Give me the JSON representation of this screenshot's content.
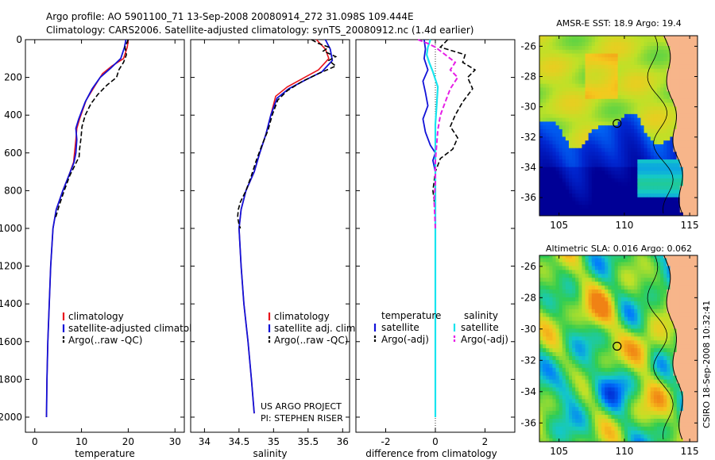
{
  "title_line1": "Argo profile: AO 5901100_71 13-Sep-2008 20080914_272 31.098S 109.444E",
  "title_line2": "Climatology: CARS2006. Satellite-adjusted climatology: synTS_20080912.nc (1.4d earlier)",
  "credit_lines": [
    "US ARGO PROJECT",
    "PI: STEPHEN RISER"
  ],
  "side_stamp": "CSIRO 18-Sep-2008 10:32:41",
  "colors": {
    "clim": "#e8141c",
    "sat": "#1212d8",
    "argo": "#000000",
    "cyan": "#19e4ee",
    "magenta": "#e61ee6"
  },
  "chart_data": [
    {
      "type": "line",
      "xlabel": "temperature",
      "ylabel": "",
      "xlim": [
        -2,
        32
      ],
      "ylim": [
        2080,
        0
      ],
      "y_reversed": true,
      "xticks": [
        0,
        10,
        20,
        30
      ],
      "yticks": [
        0,
        200,
        400,
        600,
        800,
        1000,
        1200,
        1400,
        1600,
        1800,
        2000
      ],
      "legend": [
        {
          "label": "climatology",
          "style": "red-solid"
        },
        {
          "label": "satellite-adjusted climatology",
          "style": "blue-solid"
        },
        {
          "label": "Argo(..raw -QC)",
          "style": "black-dashed"
        }
      ],
      "series": [
        {
          "name": "climatology",
          "style": "red-solid",
          "points": [
            [
              20,
              0
            ],
            [
              19.8,
              40
            ],
            [
              19,
              100
            ],
            [
              16.5,
              140
            ],
            [
              14.5,
              180
            ],
            [
              13,
              240
            ],
            [
              11,
              320
            ],
            [
              9.6,
              420
            ],
            [
              9,
              470
            ],
            [
              8.8,
              530
            ],
            [
              8.5,
              600
            ],
            [
              8.3,
              650
            ],
            [
              7.3,
              720
            ],
            [
              6,
              800
            ],
            [
              4.6,
              900
            ],
            [
              3.9,
              1000
            ],
            [
              3.4,
              1200
            ],
            [
              3.1,
              1400
            ],
            [
              2.8,
              1600
            ],
            [
              2.6,
              1800
            ],
            [
              2.5,
              2000
            ]
          ]
        },
        {
          "name": "satellite-adjusted climatology",
          "style": "blue-solid",
          "points": [
            [
              19.5,
              0
            ],
            [
              19.2,
              40
            ],
            [
              18.4,
              100
            ],
            [
              16.3,
              150
            ],
            [
              14,
              200
            ],
            [
              12.3,
              260
            ],
            [
              10.8,
              330
            ],
            [
              9.4,
              420
            ],
            [
              8.8,
              470
            ],
            [
              9,
              530
            ],
            [
              8.8,
              600
            ],
            [
              8.4,
              650
            ],
            [
              7.3,
              720
            ],
            [
              6,
              800
            ],
            [
              4.6,
              900
            ],
            [
              3.9,
              1000
            ],
            [
              3.4,
              1200
            ],
            [
              3.1,
              1400
            ],
            [
              2.8,
              1600
            ],
            [
              2.6,
              1800
            ],
            [
              2.5,
              2000
            ]
          ]
        },
        {
          "name": "Argo(..raw -QC)",
          "style": "black-dashed",
          "points": [
            [
              20,
              0
            ],
            [
              19.3,
              40
            ],
            [
              19.6,
              80
            ],
            [
              19,
              120
            ],
            [
              18,
              160
            ],
            [
              17.5,
              200
            ],
            [
              15.5,
              240
            ],
            [
              13.5,
              290
            ],
            [
              12,
              340
            ],
            [
              10.8,
              400
            ],
            [
              10.1,
              460
            ],
            [
              9.9,
              520
            ],
            [
              9.6,
              580
            ],
            [
              9.5,
              620
            ],
            [
              8.7,
              660
            ],
            [
              7.5,
              720
            ],
            [
              6.3,
              800
            ],
            [
              5.2,
              880
            ],
            [
              4.5,
              940
            ]
          ]
        }
      ]
    },
    {
      "type": "line",
      "xlabel": "salinity",
      "ylabel": "",
      "xlim": [
        33.8,
        36.1
      ],
      "ylim": [
        2080,
        0
      ],
      "y_reversed": true,
      "xticks": [
        34,
        34.5,
        35,
        35.5,
        36
      ],
      "legend": [
        {
          "label": "climatology",
          "style": "red-solid"
        },
        {
          "label": "satellite adj. clim.",
          "style": "blue-solid"
        },
        {
          "label": "Argo(..raw -QC)",
          "style": "black-dashed"
        }
      ],
      "series": [
        {
          "name": "climatology",
          "style": "red-solid",
          "points": [
            [
              35.62,
              0
            ],
            [
              35.75,
              50
            ],
            [
              35.8,
              100
            ],
            [
              35.65,
              160
            ],
            [
              35.45,
              200
            ],
            [
              35.2,
              250
            ],
            [
              35.03,
              300
            ],
            [
              34.96,
              400
            ],
            [
              34.89,
              500
            ],
            [
              34.8,
              600
            ],
            [
              34.72,
              700
            ],
            [
              34.6,
              800
            ],
            [
              34.53,
              900
            ],
            [
              34.5,
              1000
            ],
            [
              34.53,
              1200
            ],
            [
              34.57,
              1400
            ],
            [
              34.63,
              1600
            ],
            [
              34.68,
              1800
            ],
            [
              34.72,
              1980
            ]
          ]
        },
        {
          "name": "satellite adj. clim.",
          "style": "blue-solid",
          "points": [
            [
              35.75,
              0
            ],
            [
              35.82,
              50
            ],
            [
              35.85,
              110
            ],
            [
              35.7,
              170
            ],
            [
              35.48,
              210
            ],
            [
              35.22,
              260
            ],
            [
              35.05,
              310
            ],
            [
              34.96,
              400
            ],
            [
              34.89,
              500
            ],
            [
              34.8,
              600
            ],
            [
              34.72,
              700
            ],
            [
              34.6,
              800
            ],
            [
              34.53,
              900
            ],
            [
              34.5,
              1000
            ],
            [
              34.53,
              1200
            ],
            [
              34.57,
              1400
            ],
            [
              34.63,
              1600
            ],
            [
              34.68,
              1800
            ],
            [
              34.72,
              1980
            ]
          ]
        },
        {
          "name": "Argo(..raw -QC)",
          "style": "black-dashed",
          "points": [
            [
              35.55,
              0
            ],
            [
              35.65,
              20
            ],
            [
              35.8,
              40
            ],
            [
              35.72,
              60
            ],
            [
              35.9,
              90
            ],
            [
              35.8,
              110
            ],
            [
              35.9,
              140
            ],
            [
              35.65,
              180
            ],
            [
              35.42,
              220
            ],
            [
              35.2,
              270
            ],
            [
              35.06,
              320
            ],
            [
              34.98,
              400
            ],
            [
              34.92,
              480
            ],
            [
              34.83,
              560
            ],
            [
              34.75,
              640
            ],
            [
              34.68,
              720
            ],
            [
              34.6,
              800
            ],
            [
              34.52,
              860
            ],
            [
              34.49,
              900
            ],
            [
              34.48,
              940
            ],
            [
              34.5,
              980
            ],
            [
              34.52,
              1000
            ]
          ]
        }
      ]
    },
    {
      "type": "line",
      "xlabel": "difference from climatology",
      "ylabel": "",
      "xlim": [
        -3.2,
        3.2
      ],
      "ylim": [
        2080,
        0
      ],
      "y_reversed": true,
      "xticks": [
        -2,
        0,
        2
      ],
      "zero_line": "dotted",
      "legend_titles": [
        "temperature",
        "salinity"
      ],
      "legend": [
        {
          "label": "satellite",
          "style": "blue-solid",
          "column": "temperature"
        },
        {
          "label": "Argo(-adj)",
          "style": "black-dashed",
          "column": "temperature"
        },
        {
          "label": "satellite",
          "style": "cyan-solid",
          "column": "salinity"
        },
        {
          "label": "Argo(-adj)",
          "style": "magenta-dashed",
          "column": "salinity"
        }
      ],
      "series": [
        {
          "name": "temperature satellite",
          "style": "blue-solid",
          "points": [
            [
              -0.45,
              0
            ],
            [
              -0.4,
              50
            ],
            [
              -0.45,
              100
            ],
            [
              -0.3,
              160
            ],
            [
              -0.5,
              220
            ],
            [
              -0.4,
              280
            ],
            [
              -0.3,
              350
            ],
            [
              -0.5,
              420
            ],
            [
              -0.4,
              490
            ],
            [
              -0.2,
              560
            ],
            [
              0,
              600
            ],
            [
              -0.1,
              640
            ],
            [
              0,
              700
            ],
            [
              0,
              2000
            ]
          ]
        },
        {
          "name": "temperature Argo(-adj)",
          "style": "black-dashed",
          "points": [
            [
              0.5,
              0
            ],
            [
              0.2,
              40
            ],
            [
              1.2,
              80
            ],
            [
              1.1,
              120
            ],
            [
              1.6,
              160
            ],
            [
              1.3,
              200
            ],
            [
              1.5,
              260
            ],
            [
              1.1,
              330
            ],
            [
              0.8,
              400
            ],
            [
              0.6,
              460
            ],
            [
              0.9,
              520
            ],
            [
              0.7,
              580
            ],
            [
              0.2,
              630
            ],
            [
              0,
              700
            ],
            [
              -0.1,
              800
            ],
            [
              0,
              900
            ]
          ]
        },
        {
          "name": "salinity satellite",
          "style": "cyan-solid",
          "points": [
            [
              -0.2,
              0
            ],
            [
              -0.3,
              40
            ],
            [
              -0.35,
              80
            ],
            [
              -0.25,
              120
            ],
            [
              -0.1,
              170
            ],
            [
              0.1,
              250
            ],
            [
              0.05,
              350
            ],
            [
              0,
              450
            ],
            [
              0,
              600
            ],
            [
              0,
              700
            ],
            [
              0,
              2000
            ]
          ]
        },
        {
          "name": "salinity Argo(-adj)",
          "style": "magenta-dashed",
          "points": [
            [
              -0.7,
              0
            ],
            [
              -0.3,
              20
            ],
            [
              0,
              40
            ],
            [
              0.4,
              80
            ],
            [
              0.8,
              120
            ],
            [
              0.6,
              160
            ],
            [
              0.9,
              200
            ],
            [
              0.6,
              260
            ],
            [
              0.4,
              330
            ],
            [
              0.2,
              400
            ],
            [
              0.1,
              480
            ],
            [
              0.05,
              560
            ],
            [
              0,
              640
            ],
            [
              0,
              760
            ],
            [
              -0.05,
              850
            ],
            [
              0,
              1000
            ]
          ]
        }
      ]
    },
    {
      "type": "heatmap",
      "title": "AMSR-E SST: 18.9 Argo: 19.4",
      "xlim": [
        103.5,
        115.6
      ],
      "ylim": [
        -37.2,
        -25.3
      ],
      "xticks": [
        105,
        110,
        115
      ],
      "yticks": [
        -26,
        -28,
        -30,
        -32,
        -34,
        -36
      ],
      "marker": {
        "lon": 109.444,
        "lat": -31.098
      }
    },
    {
      "type": "heatmap",
      "title": "Altimetric SLA: 0.016 Argo: 0.062",
      "xlim": [
        103.5,
        115.6
      ],
      "ylim": [
        -37.2,
        -25.3
      ],
      "xticks": [
        105,
        110,
        115
      ],
      "yticks": [
        -26,
        -28,
        -30,
        -32,
        -34,
        -36
      ],
      "marker": {
        "lon": 109.444,
        "lat": -31.098
      }
    }
  ]
}
